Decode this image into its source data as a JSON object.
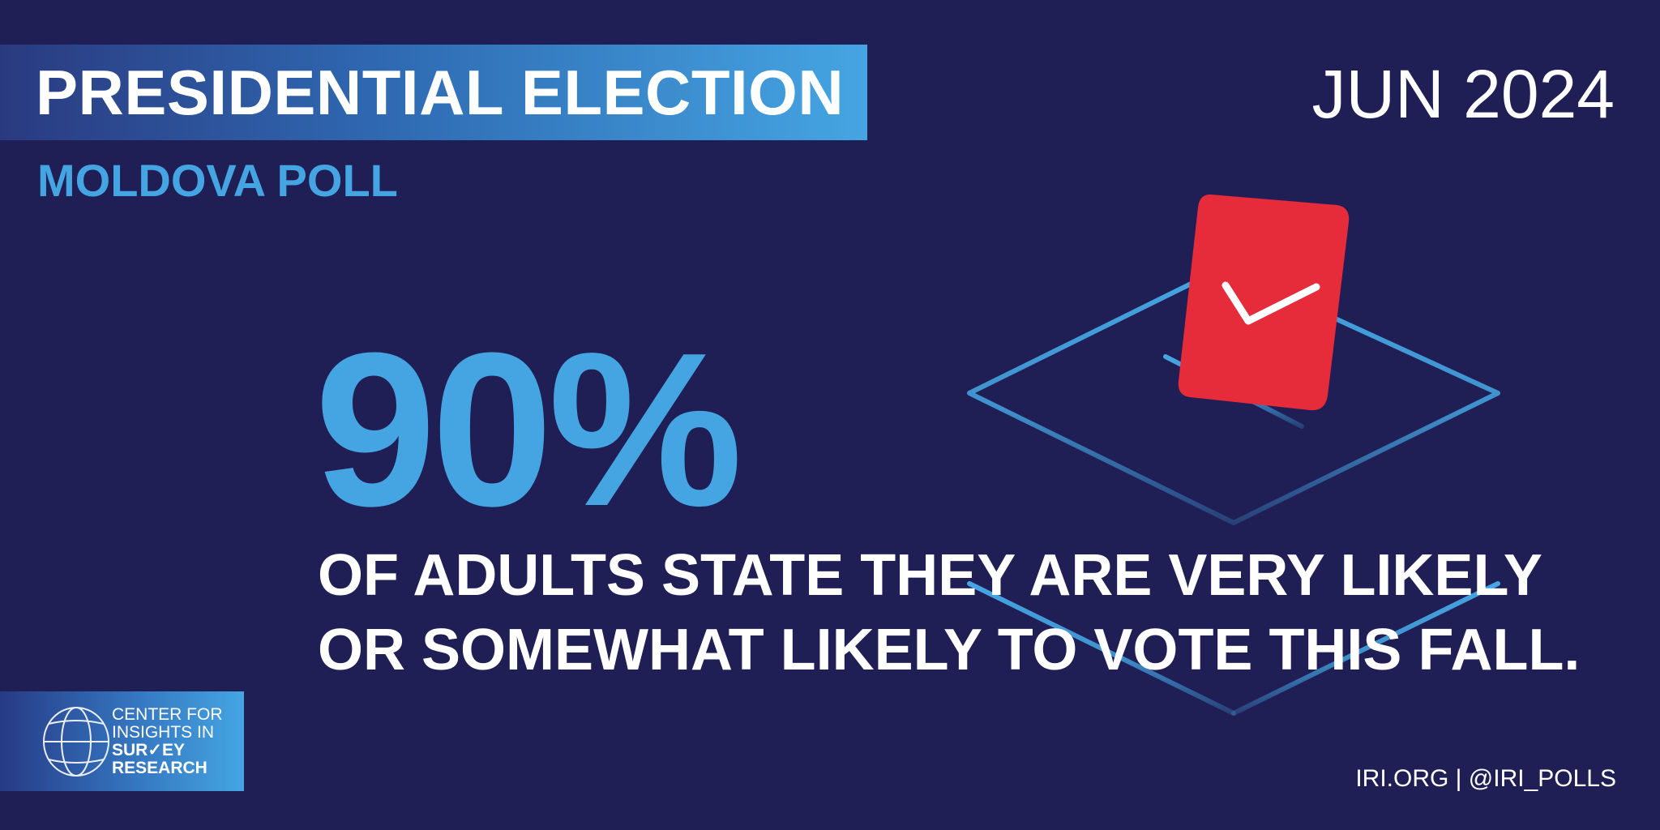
{
  "header": {
    "title": "PRESIDENTIAL ELECTION",
    "subtitle": "MOLDOVA POLL",
    "date": "JUN 2024"
  },
  "stat": {
    "value": "90%",
    "line1": "OF ADULTS STATE THEY ARE VERY LIKELY",
    "line2": "OR SOMEWHAT LIKELY TO VOTE THIS FALL."
  },
  "logo": {
    "line1": "CENTER FOR",
    "line2": "INSIGHTS IN",
    "line3a": "SUR",
    "line3b": "EY",
    "line4": "RESEARCH"
  },
  "footer": {
    "links": "IRI.ORG | @IRI_POLLS"
  },
  "icons": {
    "ballot": "ballot-box-icon",
    "check": "checkmark-icon",
    "globe": "globe-icon"
  },
  "colors": {
    "background": "#1f1f55",
    "accent": "#45a5e2",
    "ballot_red": "#e62b3b",
    "text": "#ffffff"
  }
}
